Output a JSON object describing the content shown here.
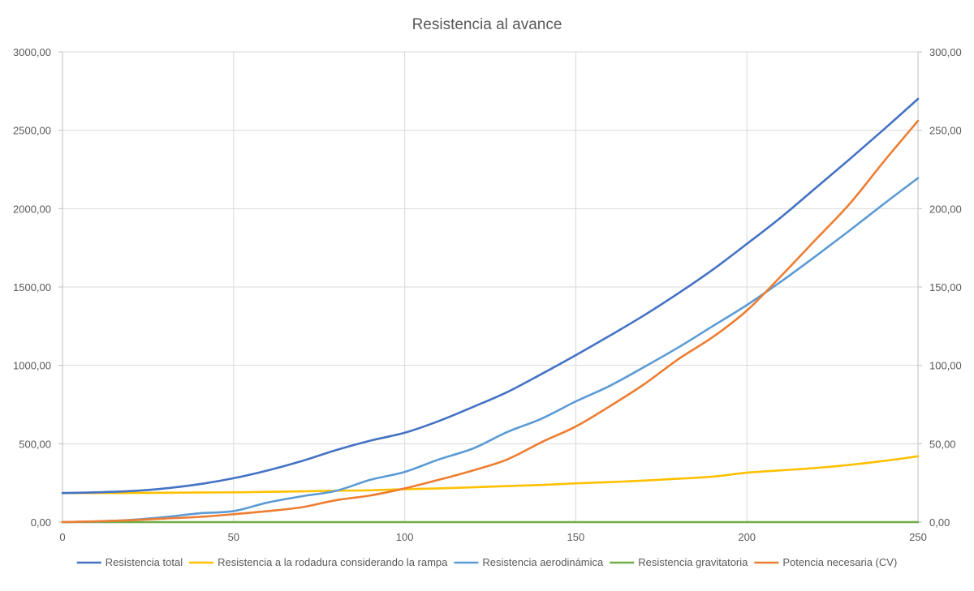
{
  "chart_data": {
    "type": "line",
    "title": "Resistencia al avance",
    "x": [
      0,
      10,
      20,
      30,
      40,
      50,
      60,
      70,
      80,
      90,
      100,
      110,
      120,
      130,
      140,
      150,
      160,
      170,
      180,
      190,
      200,
      210,
      220,
      230,
      240,
      250
    ],
    "xlim": [
      0,
      250
    ],
    "x_ticks": [
      "0",
      "50",
      "100",
      "150",
      "200",
      "250"
    ],
    "ylim": [
      0,
      3000
    ],
    "y_ticks": [
      "0,00",
      "500,00",
      "1000,00",
      "1500,00",
      "2000,00",
      "2500,00",
      "3000,00"
    ],
    "y2lim": [
      0,
      300
    ],
    "y2_ticks": [
      "0,00",
      "50,00",
      "100,00",
      "150,00",
      "200,00",
      "250,00",
      "300,00"
    ],
    "grid": true,
    "legend_position": "bottom",
    "series": [
      {
        "name": "Resistencia total",
        "axis": "left",
        "color": "#4472C4",
        "values": [
          185,
          190,
          198,
          215,
          242,
          280,
          330,
          390,
          460,
          520,
          570,
          645,
          735,
          830,
          945,
          1065,
          1190,
          1320,
          1460,
          1610,
          1775,
          1945,
          2130,
          2315,
          2505,
          2700
        ]
      },
      {
        "name": "Resistencia a la rodadura considerando la rampa",
        "axis": "left",
        "color": "#FFC000",
        "values": [
          185,
          185,
          186,
          187,
          189,
          190,
          193,
          196,
          200,
          203,
          210,
          215,
          222,
          230,
          237,
          247,
          255,
          265,
          277,
          290,
          315,
          330,
          345,
          365,
          390,
          420
        ]
      },
      {
        "name": "Resistencia aerodinámica",
        "axis": "left",
        "color": "#5B9BD5",
        "values": [
          0,
          4,
          14,
          32,
          56,
          70,
          125,
          165,
          200,
          270,
          320,
          400,
          470,
          575,
          660,
          770,
          870,
          990,
          1115,
          1250,
          1385,
          1535,
          1695,
          1860,
          2030,
          2195
        ]
      },
      {
        "name": "Resistencia gravitatoria",
        "axis": "left",
        "color": "#70AD47",
        "values": [
          0,
          0,
          0,
          0,
          0,
          0,
          0,
          0,
          0,
          0,
          0,
          0,
          0,
          0,
          0,
          0,
          0,
          0,
          0,
          0,
          0,
          0,
          0,
          0,
          0,
          0
        ]
      },
      {
        "name": "Potencia necesaria (CV)",
        "axis": "right",
        "color": "#ED7D31",
        "values": [
          0,
          0.5,
          1.2,
          2.3,
          3.3,
          5,
          7,
          9.5,
          14,
          17,
          21.5,
          27,
          33,
          40,
          51,
          61,
          74,
          88,
          104,
          118,
          135,
          157,
          180,
          203,
          230,
          256
        ]
      }
    ]
  }
}
